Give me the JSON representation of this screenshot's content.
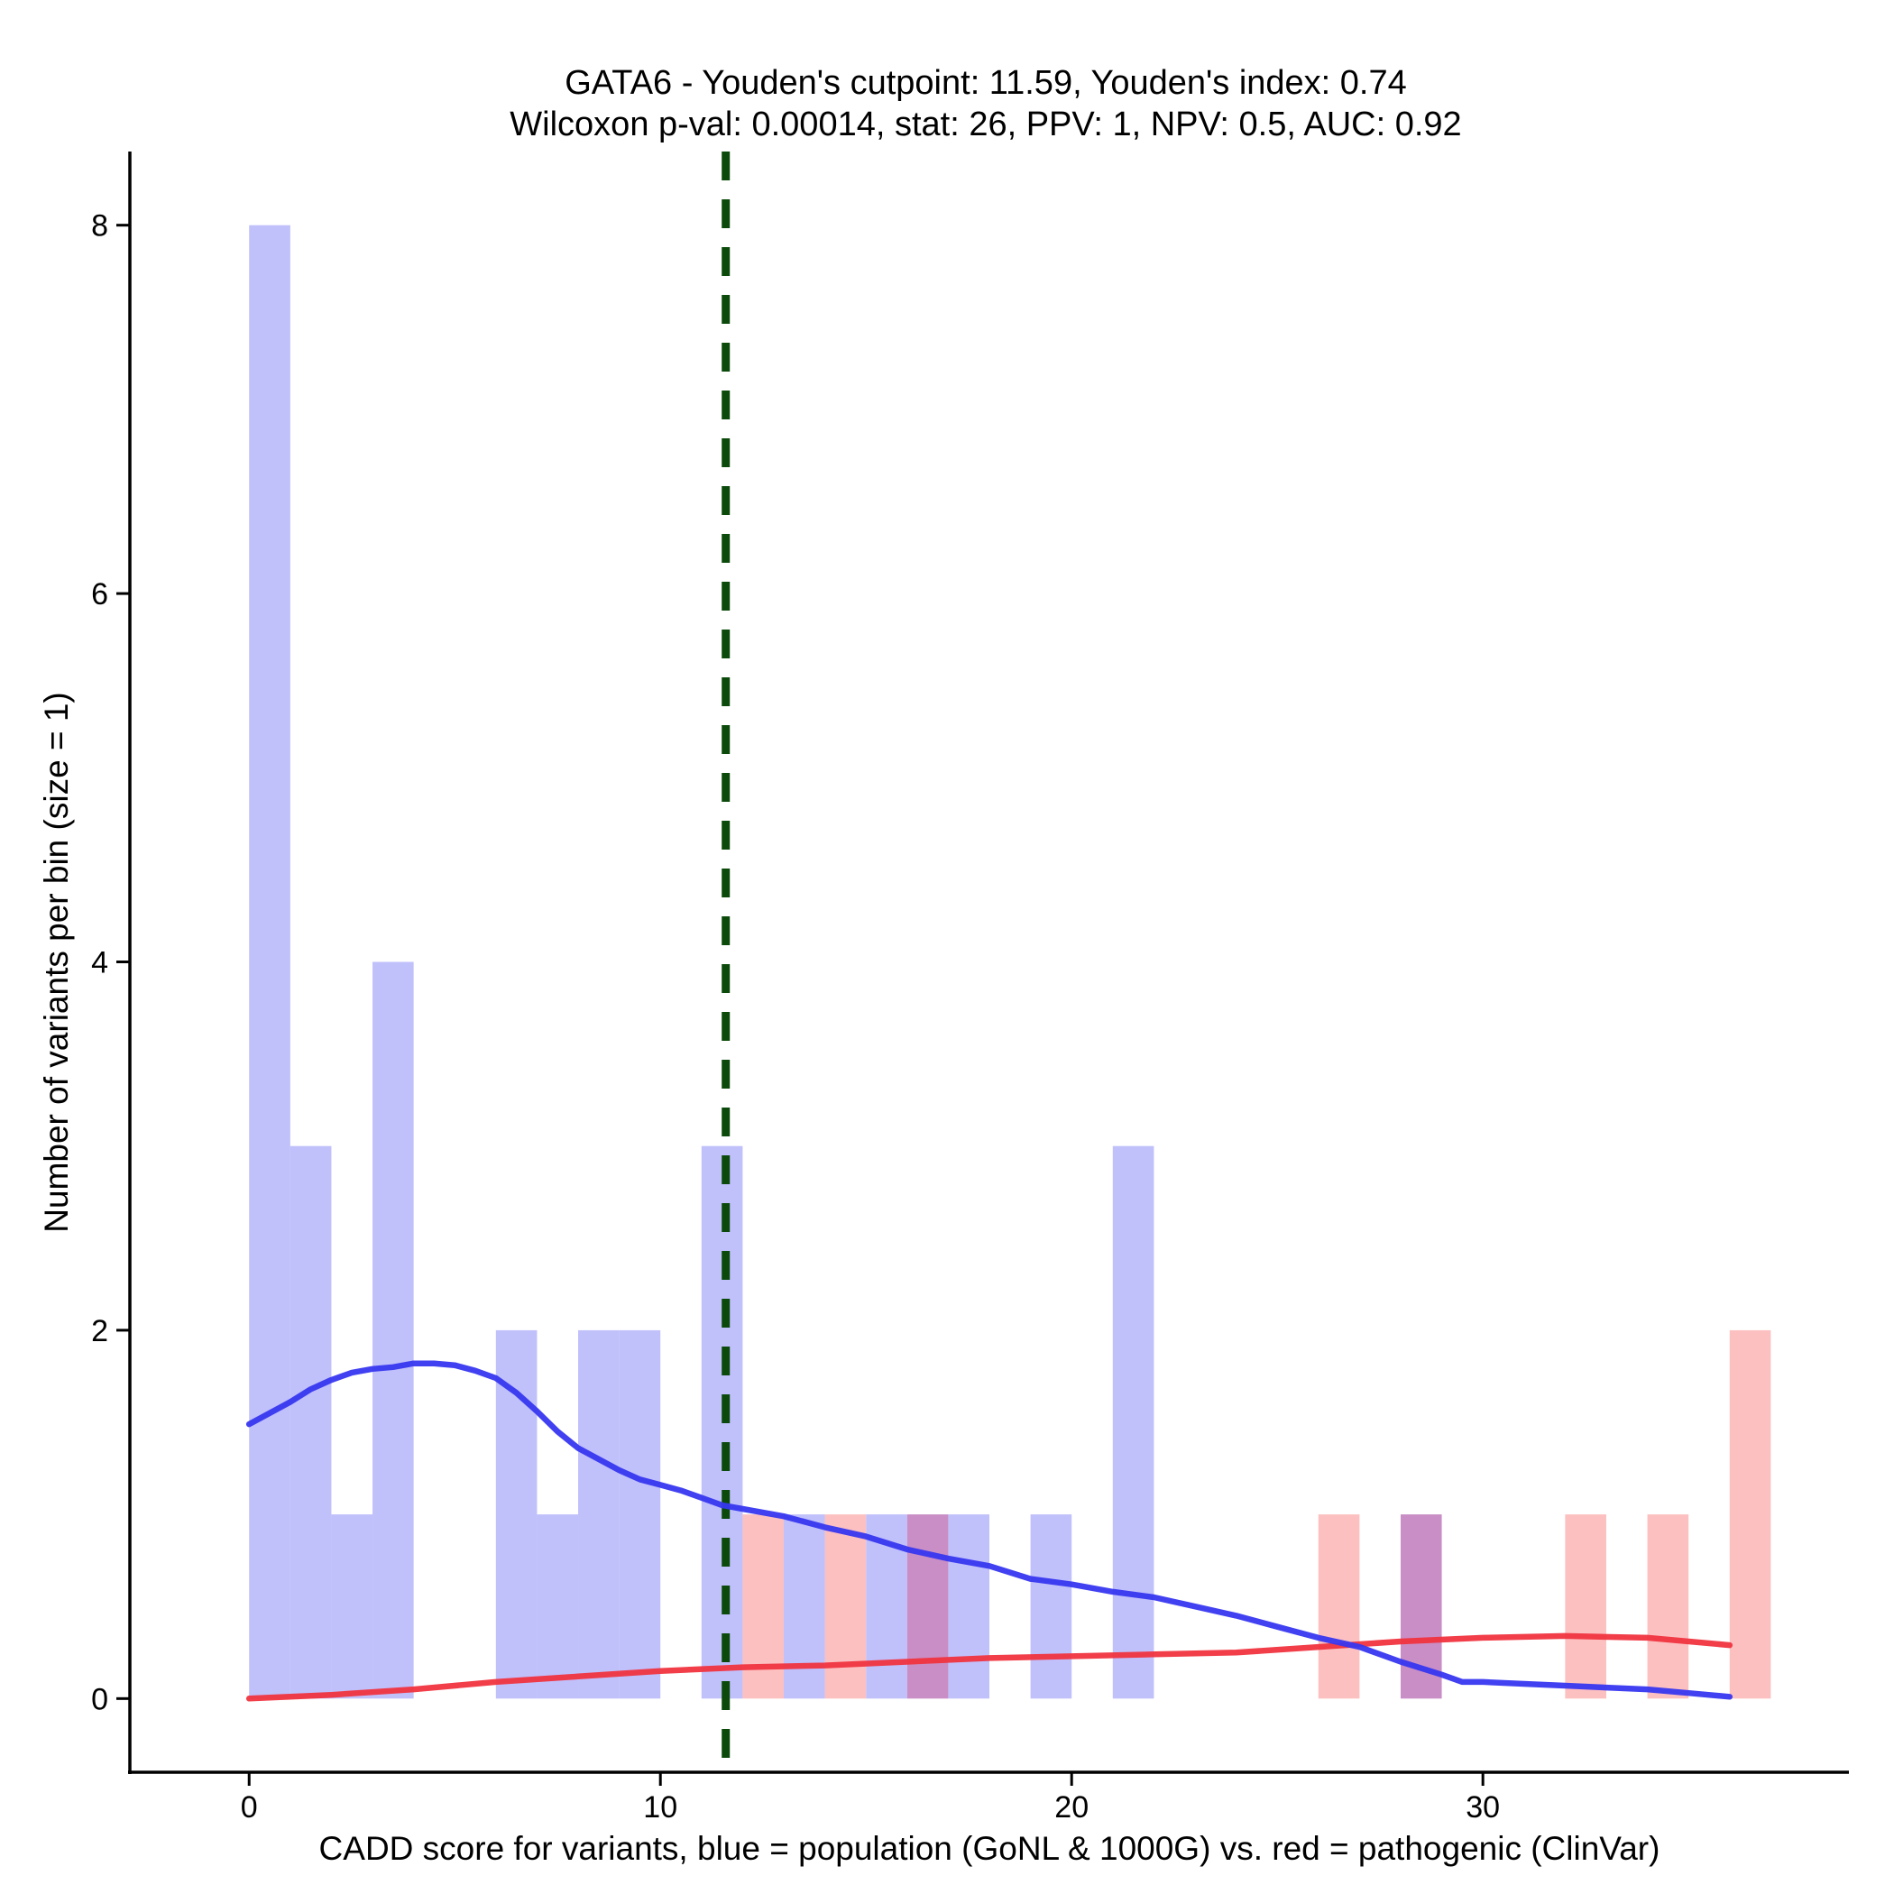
{
  "chart_data": {
    "type": "histogram",
    "title_line1": "GATA6 - Youden's cutpoint: 11.59, Youden's index: 0.74",
    "title_line2": "Wilcoxon p-val: 0.00014, stat: 26, PPV: 1, NPV: 0.5, AUC: 0.92",
    "xlabel": "CADD score for variants, blue = population (GoNL & 1000G) vs. red = pathogenic (ClinVar)",
    "ylabel": "Number of variants per bin (size = 1)",
    "xlim": [
      -2.9,
      38.9
    ],
    "ylim": [
      -0.4,
      8.4
    ],
    "x_ticks": [
      0,
      10,
      20,
      30
    ],
    "y_ticks": [
      0,
      2,
      4,
      6,
      8
    ],
    "cutpoint": 11.59,
    "bin_width": 1,
    "colors": {
      "population_bar": "#c0c0fb",
      "pathogenic_bar": "#fcc0c0",
      "overlap_bar": "#c98ec5",
      "population_line": "#3737f0",
      "pathogenic_line": "#f0343f",
      "cutpoint_line": "#0b4a0b"
    },
    "series": [
      {
        "name": "population (GoNL & 1000G)",
        "bins": [
          {
            "start": 0,
            "count": 8
          },
          {
            "start": 1,
            "count": 3
          },
          {
            "start": 2,
            "count": 1
          },
          {
            "start": 3,
            "count": 4
          },
          {
            "start": 6,
            "count": 2
          },
          {
            "start": 7,
            "count": 1
          },
          {
            "start": 8,
            "count": 2
          },
          {
            "start": 9,
            "count": 2
          },
          {
            "start": 11,
            "count": 3
          },
          {
            "start": 13,
            "count": 1
          },
          {
            "start": 15,
            "count": 1
          },
          {
            "start": 16,
            "count": 1
          },
          {
            "start": 17,
            "count": 1
          },
          {
            "start": 19,
            "count": 1
          },
          {
            "start": 21,
            "count": 3
          },
          {
            "start": 28,
            "count": 1
          }
        ],
        "density_curve": {
          "x": [
            0,
            1,
            1.5,
            2,
            2.5,
            3,
            3.5,
            4,
            4.5,
            5,
            5.5,
            6,
            6.5,
            7,
            7.5,
            8,
            8.5,
            9,
            9.5,
            10,
            10.5,
            11,
            11.5,
            12,
            13,
            14,
            15,
            16,
            17,
            18,
            19,
            20,
            21,
            22,
            23,
            24,
            25,
            26,
            27,
            28,
            29,
            29.5,
            30,
            31,
            32,
            33,
            34,
            35,
            36
          ],
          "y": [
            1.49,
            1.61,
            1.68,
            1.73,
            1.77,
            1.79,
            1.8,
            1.82,
            1.82,
            1.81,
            1.78,
            1.74,
            1.66,
            1.56,
            1.45,
            1.36,
            1.3,
            1.24,
            1.19,
            1.16,
            1.13,
            1.09,
            1.05,
            1.03,
            0.99,
            0.93,
            0.88,
            0.81,
            0.76,
            0.72,
            0.65,
            0.62,
            0.58,
            0.55,
            0.5,
            0.45,
            0.39,
            0.33,
            0.28,
            0.2,
            0.13,
            0.09,
            0.09,
            0.08,
            0.07,
            0.06,
            0.05,
            0.03,
            0.01
          ]
        }
      },
      {
        "name": "pathogenic (ClinVar)",
        "bins": [
          {
            "start": 12,
            "count": 1
          },
          {
            "start": 14,
            "count": 1
          },
          {
            "start": 16,
            "count": 1
          },
          {
            "start": 26,
            "count": 1
          },
          {
            "start": 28,
            "count": 1
          },
          {
            "start": 32,
            "count": 1
          },
          {
            "start": 34,
            "count": 1
          },
          {
            "start": 36,
            "count": 2
          }
        ],
        "density_curve": {
          "x": [
            0,
            2,
            4,
            6,
            8,
            10,
            12,
            14,
            16,
            18,
            20,
            22,
            24,
            26,
            28,
            30,
            32,
            34,
            36
          ],
          "y": [
            0.0,
            0.02,
            0.05,
            0.09,
            0.12,
            0.15,
            0.17,
            0.18,
            0.2,
            0.22,
            0.23,
            0.24,
            0.25,
            0.28,
            0.31,
            0.33,
            0.34,
            0.33,
            0.29
          ]
        }
      }
    ]
  }
}
